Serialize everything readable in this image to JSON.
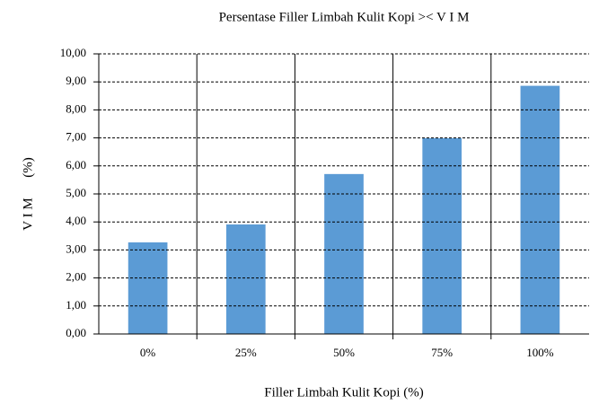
{
  "chart_data": {
    "type": "bar",
    "title": "Persentase Filler Limbah Kulit Kopi >< V I M",
    "x_label": "Filler Limbah Kulit Kopi (%)",
    "y_label": "V I M      (%)",
    "categories": [
      "0%",
      "25%",
      "50%",
      "75%",
      "100%"
    ],
    "values": [
      3.27,
      3.91,
      5.71,
      6.99,
      8.86
    ],
    "color": "#5b9bd5",
    "ylim": [
      0,
      10
    ],
    "yticks": [
      {
        "value": 0,
        "label": "0,00"
      },
      {
        "value": 1,
        "label": "1,00"
      },
      {
        "value": 2,
        "label": "2,00"
      },
      {
        "value": 3,
        "label": "3,00"
      },
      {
        "value": 4,
        "label": "4,00"
      },
      {
        "value": 5,
        "label": "5,00"
      },
      {
        "value": 6,
        "label": "6,00"
      },
      {
        "value": 7,
        "label": "7,00"
      },
      {
        "value": 8,
        "label": "8,00"
      },
      {
        "value": 9,
        "label": "9,00"
      },
      {
        "value": 10,
        "label": "10,00"
      }
    ],
    "grid": true
  }
}
